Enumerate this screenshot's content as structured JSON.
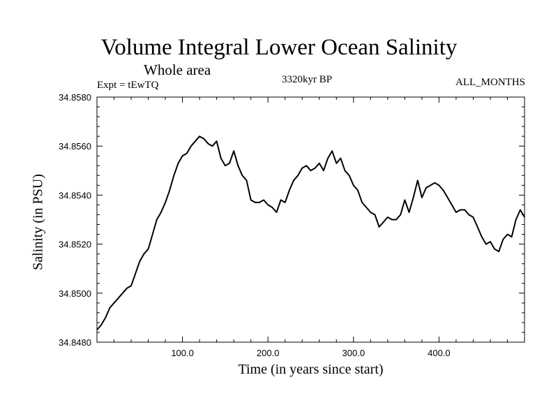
{
  "chart_data": {
    "type": "line",
    "title": "Volume Integral Lower Ocean Salinity",
    "subtitle": "Whole area",
    "left_label": "Expt = tEwTQ",
    "center_label": "3320kyr BP",
    "right_label": "ALL_MONTHS",
    "xlabel": "Time (in years since start)",
    "ylabel": "Salinity (in PSU)",
    "xlim": [
      0,
      500
    ],
    "ylim": [
      34.848,
      34.858
    ],
    "x_ticks": [
      "100.0",
      "200.0",
      "300.0",
      "400.0"
    ],
    "y_ticks": [
      "34.8480",
      "34.8500",
      "34.8520",
      "34.8540",
      "34.8560",
      "34.8580"
    ],
    "series": [
      {
        "name": "Salinity",
        "x": [
          0,
          5,
          10,
          15,
          20,
          25,
          30,
          35,
          40,
          45,
          50,
          55,
          60,
          65,
          70,
          75,
          80,
          85,
          90,
          95,
          100,
          105,
          110,
          115,
          120,
          125,
          130,
          135,
          140,
          145,
          150,
          155,
          160,
          165,
          170,
          175,
          180,
          185,
          190,
          195,
          200,
          205,
          210,
          215,
          220,
          225,
          230,
          235,
          240,
          245,
          250,
          255,
          260,
          265,
          270,
          275,
          280,
          285,
          290,
          295,
          300,
          305,
          310,
          315,
          320,
          325,
          330,
          335,
          340,
          345,
          350,
          355,
          360,
          365,
          370,
          375,
          380,
          385,
          390,
          395,
          400,
          405,
          410,
          415,
          420,
          425,
          430,
          435,
          440,
          445,
          450,
          455,
          460,
          465,
          470,
          475,
          480,
          485,
          490,
          495,
          500
        ],
        "values": [
          34.8485,
          34.8487,
          34.849,
          34.8494,
          34.8496,
          34.8498,
          34.85,
          34.8502,
          34.8503,
          34.8508,
          34.8513,
          34.8516,
          34.8518,
          34.8524,
          34.853,
          34.8533,
          34.8537,
          34.8542,
          34.8548,
          34.8553,
          34.8556,
          34.8557,
          34.856,
          34.8562,
          34.8564,
          34.8563,
          34.8561,
          34.856,
          34.8562,
          34.8555,
          34.8552,
          34.8553,
          34.8558,
          34.8552,
          34.8548,
          34.8546,
          34.8538,
          34.8537,
          34.8537,
          34.8538,
          34.8536,
          34.8535,
          34.8533,
          34.8538,
          34.8537,
          34.8542,
          34.8546,
          34.8548,
          34.8551,
          34.8552,
          34.855,
          34.8551,
          34.8553,
          34.855,
          34.8555,
          34.8558,
          34.8553,
          34.8555,
          34.855,
          34.8548,
          34.8544,
          34.8542,
          34.8537,
          34.8535,
          34.8533,
          34.8532,
          34.8527,
          34.8529,
          34.8531,
          34.853,
          34.853,
          34.8532,
          34.8538,
          34.8533,
          34.8539,
          34.8546,
          34.8539,
          34.8543,
          34.8544,
          34.8545,
          34.8544,
          34.8542,
          34.8539,
          34.8536,
          34.8533,
          34.8534,
          34.8534,
          34.8532,
          34.8531,
          34.8527,
          34.8523,
          34.852,
          34.8521,
          34.8518,
          34.8517,
          34.8522,
          34.8524,
          34.8523,
          34.853,
          34.8534,
          34.8531
        ]
      }
    ]
  }
}
